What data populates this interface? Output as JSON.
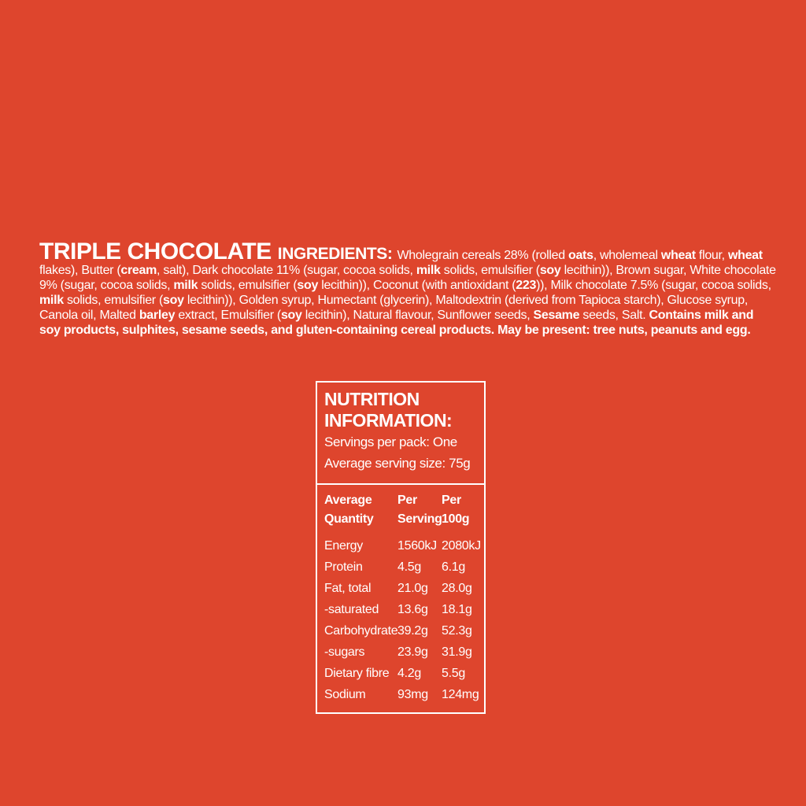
{
  "page": {
    "background_color": "#DE452D",
    "text_color": "#FFFFFF",
    "panel_border_color": "#FFFFFF"
  },
  "ingredients": {
    "title": "TRIPLE CHOCOLATE",
    "label": "INGREDIENTS:",
    "segments": [
      {
        "t": "Wholegrain cereals 28% (rolled ",
        "b": false
      },
      {
        "t": "oats",
        "b": true
      },
      {
        "t": ", wholemeal ",
        "b": false
      },
      {
        "t": "wheat",
        "b": true
      },
      {
        "t": " flour, ",
        "b": false
      },
      {
        "t": "wheat",
        "b": true
      },
      {
        "t": " flakes), Butter (",
        "b": false
      },
      {
        "t": "cream",
        "b": true
      },
      {
        "t": ", salt), Dark chocolate 11% (sugar, cocoa solids, ",
        "b": false
      },
      {
        "t": "milk",
        "b": true
      },
      {
        "t": " solids, emulsifier (",
        "b": false
      },
      {
        "t": "soy",
        "b": true
      },
      {
        "t": " lecithin)), Brown sugar, White chocolate 9% (sugar, cocoa solids, ",
        "b": false
      },
      {
        "t": "milk",
        "b": true
      },
      {
        "t": " solids, emulsifier (",
        "b": false
      },
      {
        "t": "soy",
        "b": true
      },
      {
        "t": " lecithin)), Coconut (with antioxidant (",
        "b": false
      },
      {
        "t": "223",
        "b": true
      },
      {
        "t": ")), Milk chocolate 7.5% (sugar, cocoa solids, ",
        "b": false
      },
      {
        "t": "milk",
        "b": true
      },
      {
        "t": " solids, emulsifier (",
        "b": false
      },
      {
        "t": "soy",
        "b": true
      },
      {
        "t": " lecithin)), Golden syrup, Humectant (glycerin), Maltodextrin (derived from Tapioca starch), Glucose syrup, Canola oil, Malted ",
        "b": false
      },
      {
        "t": "barley",
        "b": true
      },
      {
        "t": " extract, Emulsifier (",
        "b": false
      },
      {
        "t": "soy",
        "b": true
      },
      {
        "t": " lecithin), Natural flavour, Sunflower seeds, ",
        "b": false
      },
      {
        "t": "Sesame",
        "b": true
      },
      {
        "t": " seeds, Salt. ",
        "b": false
      },
      {
        "t": "Contains milk and soy products, sulphites, sesame seeds, and gluten-containing cereal products. May be present: tree nuts, peanuts and egg.",
        "b": true
      }
    ]
  },
  "nutrition": {
    "title": "NUTRITION INFORMATION:",
    "servings_per_pack": "Servings per pack: One",
    "serving_size": "Average serving size: 75g",
    "columns": [
      "Average Quantity",
      "Per Serving",
      "Per 100g"
    ],
    "rows": [
      {
        "label": "Energy",
        "per_serving": "1560kJ",
        "per_100g": "2080kJ"
      },
      {
        "label": "Protein",
        "per_serving": "4.5g",
        "per_100g": "6.1g"
      },
      {
        "label": "Fat, total",
        "per_serving": "21.0g",
        "per_100g": "28.0g"
      },
      {
        "label": "-saturated",
        "per_serving": "13.6g",
        "per_100g": "18.1g"
      },
      {
        "label": "Carbohydrate",
        "per_serving": "39.2g",
        "per_100g": "52.3g"
      },
      {
        "label": "-sugars",
        "per_serving": "23.9g",
        "per_100g": "31.9g"
      },
      {
        "label": "Dietary fibre",
        "per_serving": "4.2g",
        "per_100g": "5.5g"
      },
      {
        "label": "Sodium",
        "per_serving": "93mg",
        "per_100g": "124mg"
      }
    ]
  }
}
